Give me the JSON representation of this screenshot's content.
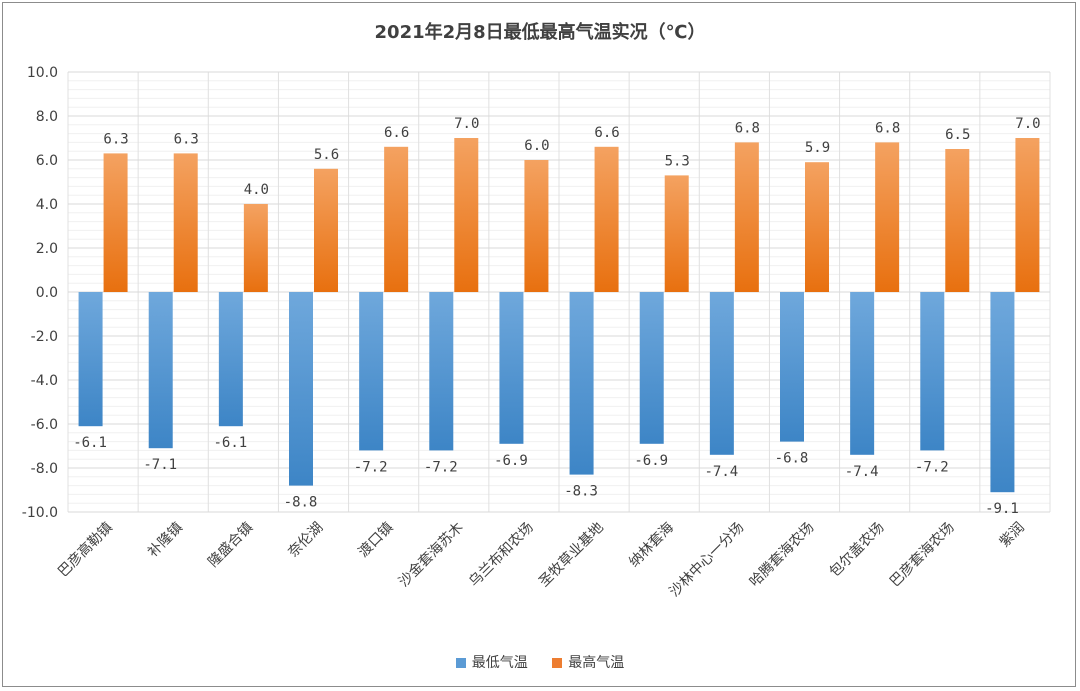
{
  "chart_data": {
    "type": "bar",
    "title": "2021年2月8日最低最高气温实况（℃）",
    "categories": [
      "巴彦高勒镇",
      "补隆镇",
      "隆盛合镇",
      "奈伦湖",
      "渡口镇",
      "沙金套海苏木",
      "乌兰布和农场",
      "圣牧草业基地",
      "纳林套海",
      "沙林中心一分场",
      "哈腾套海农场",
      "包尔盖农场",
      "巴彦套海农场",
      "紫润"
    ],
    "series": [
      {
        "name": "最低气温",
        "color": "#5b9bd5",
        "values": [
          -6.1,
          -7.1,
          -6.1,
          -8.8,
          -7.2,
          -7.2,
          -6.9,
          -8.3,
          -6.9,
          -7.4,
          -6.8,
          -7.4,
          -7.2,
          -9.1
        ]
      },
      {
        "name": "最高气温",
        "color": "#ed7d31",
        "values": [
          6.3,
          6.3,
          4.0,
          5.6,
          6.6,
          7.0,
          6.0,
          6.6,
          5.3,
          6.8,
          5.9,
          6.8,
          6.5,
          7.0
        ]
      }
    ],
    "ylim": [
      -10,
      10
    ],
    "yticks": [
      10.0,
      8.0,
      6.0,
      4.0,
      2.0,
      0.0,
      -2.0,
      -4.0,
      -6.0,
      -8.0,
      -10.0
    ],
    "ytick_labels": [
      "10.0",
      "8.0",
      "6.0",
      "4.0",
      "2.0",
      "0.0",
      "-2.0",
      "-4.0",
      "-6.0",
      "-8.0",
      "-10.0"
    ],
    "data_labels": {
      "min": [
        "-6.1",
        "-7.1",
        "-6.1",
        "-8.8",
        "-7.2",
        "-7.2",
        "-6.9",
        "-8.3",
        "-6.9",
        "-7.4",
        "-6.8",
        "-7.4",
        "-7.2",
        "-9.1"
      ],
      "max": [
        "6.3",
        "6.3",
        "4.0",
        "5.6",
        "6.6",
        "7.0",
        "6.0",
        "6.6",
        "5.3",
        "6.8",
        "5.9",
        "6.8",
        "6.5",
        "7.0"
      ]
    },
    "grid": true,
    "legend": "bottom"
  }
}
